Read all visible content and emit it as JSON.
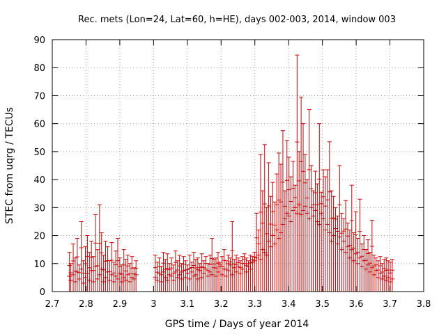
{
  "chart_data": {
    "type": "scatter",
    "title": "Rec. mets (Lon=24, Lat=60, h=HE), days 002-003, 2014, window 003",
    "xlabel": "GPS time / Days of year 2014",
    "ylabel": "STEC from uqrg / TECUs",
    "xlim": [
      2.7,
      3.8
    ],
    "ylim": [
      0,
      90
    ],
    "xticks": [
      "2.7",
      "2.8",
      "2.9",
      "3",
      "3.1",
      "3.2",
      "3.3",
      "3.4",
      "3.5",
      "3.6",
      "3.7",
      "3.8"
    ],
    "yticks": [
      "0",
      "10",
      "20",
      "30",
      "40",
      "50",
      "60",
      "70",
      "80",
      "90"
    ],
    "grid": true,
    "series": [
      {
        "color": "#cc0000",
        "error_bars": true,
        "points": [
          {
            "x": 2.751,
            "y": 5.5,
            "top": 14.0
          },
          {
            "x": 2.755,
            "y": 4.0,
            "top": 10.0
          },
          {
            "x": 2.762,
            "y": 6.0,
            "top": 17.0
          },
          {
            "x": 2.768,
            "y": 3.5,
            "top": 12.0
          },
          {
            "x": 2.774,
            "y": 7.0,
            "top": 19.0
          },
          {
            "x": 2.78,
            "y": 4.5,
            "top": 9.5
          },
          {
            "x": 2.786,
            "y": 8.0,
            "top": 25.0
          },
          {
            "x": 2.792,
            "y": 3.0,
            "top": 11.0
          },
          {
            "x": 2.798,
            "y": 5.0,
            "top": 16.0
          },
          {
            "x": 2.804,
            "y": 6.5,
            "top": 20.0
          },
          {
            "x": 2.81,
            "y": 4.0,
            "top": 14.0
          },
          {
            "x": 2.816,
            "y": 7.5,
            "top": 18.0
          },
          {
            "x": 2.822,
            "y": 3.5,
            "top": 12.5
          },
          {
            "x": 2.828,
            "y": 9.0,
            "top": 27.5
          },
          {
            "x": 2.834,
            "y": 4.5,
            "top": 15.0
          },
          {
            "x": 2.84,
            "y": 6.0,
            "top": 31.0
          },
          {
            "x": 2.846,
            "y": 8.0,
            "top": 21.0
          },
          {
            "x": 2.852,
            "y": 3.5,
            "top": 13.0
          },
          {
            "x": 2.858,
            "y": 5.0,
            "top": 18.0
          },
          {
            "x": 2.864,
            "y": 7.0,
            "top": 16.0
          },
          {
            "x": 2.87,
            "y": 4.0,
            "top": 11.0
          },
          {
            "x": 2.876,
            "y": 6.0,
            "top": 17.5
          },
          {
            "x": 2.882,
            "y": 3.5,
            "top": 10.5
          },
          {
            "x": 2.888,
            "y": 5.5,
            "top": 14.5
          },
          {
            "x": 2.894,
            "y": 4.5,
            "top": 19.0
          },
          {
            "x": 2.9,
            "y": 6.5,
            "top": 12.0
          },
          {
            "x": 2.906,
            "y": 3.5,
            "top": 9.5
          },
          {
            "x": 2.912,
            "y": 5.0,
            "top": 15.0
          },
          {
            "x": 2.918,
            "y": 4.0,
            "top": 11.5
          },
          {
            "x": 2.924,
            "y": 6.0,
            "top": 13.0
          },
          {
            "x": 2.93,
            "y": 3.5,
            "top": 10.0
          },
          {
            "x": 2.936,
            "y": 5.0,
            "top": 12.5
          },
          {
            "x": 2.942,
            "y": 4.5,
            "top": 8.5
          },
          {
            "x": 2.948,
            "y": 6.0,
            "top": 11.0
          },
          {
            "x": 3.005,
            "y": 5.0,
            "top": 13.0
          },
          {
            "x": 3.011,
            "y": 4.0,
            "top": 10.5
          },
          {
            "x": 3.017,
            "y": 6.5,
            "top": 12.0
          },
          {
            "x": 3.023,
            "y": 3.5,
            "top": 9.0
          },
          {
            "x": 3.029,
            "y": 7.0,
            "top": 14.0
          },
          {
            "x": 3.035,
            "y": 5.0,
            "top": 11.5
          },
          {
            "x": 3.041,
            "y": 4.0,
            "top": 13.5
          },
          {
            "x": 3.047,
            "y": 6.0,
            "top": 10.0
          },
          {
            "x": 3.053,
            "y": 5.5,
            "top": 12.0
          },
          {
            "x": 3.059,
            "y": 4.0,
            "top": 9.5
          },
          {
            "x": 3.065,
            "y": 7.0,
            "top": 14.5
          },
          {
            "x": 3.071,
            "y": 5.0,
            "top": 11.0
          },
          {
            "x": 3.077,
            "y": 6.0,
            "top": 13.0
          },
          {
            "x": 3.083,
            "y": 4.5,
            "top": 10.0
          },
          {
            "x": 3.089,
            "y": 7.5,
            "top": 12.5
          },
          {
            "x": 3.095,
            "y": 5.0,
            "top": 11.0
          },
          {
            "x": 3.101,
            "y": 6.5,
            "top": 9.5
          },
          {
            "x": 3.107,
            "y": 4.5,
            "top": 13.0
          },
          {
            "x": 3.113,
            "y": 7.0,
            "top": 10.5
          },
          {
            "x": 3.119,
            "y": 5.5,
            "top": 14.0
          },
          {
            "x": 3.125,
            "y": 6.0,
            "top": 11.5
          },
          {
            "x": 3.131,
            "y": 4.5,
            "top": 12.0
          },
          {
            "x": 3.137,
            "y": 7.5,
            "top": 10.0
          },
          {
            "x": 3.143,
            "y": 5.0,
            "top": 13.5
          },
          {
            "x": 3.149,
            "y": 6.5,
            "top": 11.0
          },
          {
            "x": 3.155,
            "y": 8.0,
            "top": 12.5
          },
          {
            "x": 3.161,
            "y": 5.5,
            "top": 10.0
          },
          {
            "x": 3.167,
            "y": 7.0,
            "top": 13.0
          },
          {
            "x": 3.173,
            "y": 6.0,
            "top": 19.0
          },
          {
            "x": 3.179,
            "y": 8.5,
            "top": 11.5
          },
          {
            "x": 3.185,
            "y": 5.5,
            "top": 12.0
          },
          {
            "x": 3.191,
            "y": 7.0,
            "top": 14.0
          },
          {
            "x": 3.197,
            "y": 9.0,
            "top": 10.5
          },
          {
            "x": 3.203,
            "y": 6.0,
            "top": 12.5
          },
          {
            "x": 3.209,
            "y": 8.0,
            "top": 15.0
          },
          {
            "x": 3.215,
            "y": 5.5,
            "top": 11.0
          },
          {
            "x": 3.221,
            "y": 7.5,
            "top": 13.0
          },
          {
            "x": 3.227,
            "y": 9.5,
            "top": 12.0
          },
          {
            "x": 3.233,
            "y": 6.0,
            "top": 25.0
          },
          {
            "x": 3.239,
            "y": 8.5,
            "top": 11.5
          },
          {
            "x": 3.245,
            "y": 7.0,
            "top": 13.0
          },
          {
            "x": 3.251,
            "y": 9.0,
            "top": 12.0
          },
          {
            "x": 3.257,
            "y": 6.5,
            "top": 11.0
          },
          {
            "x": 3.263,
            "y": 8.0,
            "top": 12.5
          },
          {
            "x": 3.269,
            "y": 10.0,
            "top": 13.5
          },
          {
            "x": 3.275,
            "y": 7.0,
            "top": 12.0
          },
          {
            "x": 3.281,
            "y": 9.0,
            "top": 11.0
          },
          {
            "x": 3.287,
            "y": 8.0,
            "top": 13.0
          },
          {
            "x": 3.293,
            "y": 10.5,
            "top": 12.5
          },
          {
            "x": 3.299,
            "y": 11.0,
            "top": 14.0
          },
          {
            "x": 3.305,
            "y": 12.0,
            "top": 28.0
          },
          {
            "x": 3.311,
            "y": 13.0,
            "top": 22.0
          },
          {
            "x": 3.317,
            "y": 11.5,
            "top": 49.0
          },
          {
            "x": 3.323,
            "y": 15.0,
            "top": 36.0
          },
          {
            "x": 3.329,
            "y": 14.0,
            "top": 52.5
          },
          {
            "x": 3.335,
            "y": 13.0,
            "top": 30.0
          },
          {
            "x": 3.341,
            "y": 18.0,
            "top": 46.0
          },
          {
            "x": 3.347,
            "y": 16.0,
            "top": 34.0
          },
          {
            "x": 3.353,
            "y": 20.0,
            "top": 39.0
          },
          {
            "x": 3.359,
            "y": 17.0,
            "top": 32.0
          },
          {
            "x": 3.365,
            "y": 22.0,
            "top": 42.0
          },
          {
            "x": 3.371,
            "y": 19.0,
            "top": 49.5
          },
          {
            "x": 3.377,
            "y": 21.0,
            "top": 45.5
          },
          {
            "x": 3.383,
            "y": 24.0,
            "top": 57.5
          },
          {
            "x": 3.389,
            "y": 26.0,
            "top": 36.0
          },
          {
            "x": 3.395,
            "y": 28.0,
            "top": 54.0
          },
          {
            "x": 3.401,
            "y": 27.0,
            "top": 48.0
          },
          {
            "x": 3.407,
            "y": 25.0,
            "top": 41.0
          },
          {
            "x": 3.413,
            "y": 29.0,
            "top": 46.5
          },
          {
            "x": 3.419,
            "y": 30.0,
            "top": 38.0
          },
          {
            "x": 3.425,
            "y": 28.0,
            "top": 84.5
          },
          {
            "x": 3.431,
            "y": 31.0,
            "top": 50.0
          },
          {
            "x": 3.437,
            "y": 27.5,
            "top": 69.5
          },
          {
            "x": 3.443,
            "y": 29.0,
            "top": 60.0
          },
          {
            "x": 3.449,
            "y": 30.5,
            "top": 49.0
          },
          {
            "x": 3.455,
            "y": 28.0,
            "top": 40.0
          },
          {
            "x": 3.461,
            "y": 26.0,
            "top": 65.0
          },
          {
            "x": 3.467,
            "y": 30.0,
            "top": 45.0
          },
          {
            "x": 3.473,
            "y": 27.0,
            "top": 36.0
          },
          {
            "x": 3.479,
            "y": 29.0,
            "top": 43.0
          },
          {
            "x": 3.485,
            "y": 25.0,
            "top": 38.5
          },
          {
            "x": 3.491,
            "y": 24.0,
            "top": 60.0
          },
          {
            "x": 3.497,
            "y": 28.0,
            "top": 35.5
          },
          {
            "x": 3.503,
            "y": 26.0,
            "top": 43.5
          },
          {
            "x": 3.509,
            "y": 22.0,
            "top": 41.0
          },
          {
            "x": 3.515,
            "y": 24.0,
            "top": 43.5
          },
          {
            "x": 3.521,
            "y": 21.0,
            "top": 53.5
          },
          {
            "x": 3.527,
            "y": 18.0,
            "top": 36.0
          },
          {
            "x": 3.533,
            "y": 20.0,
            "top": 34.0
          },
          {
            "x": 3.539,
            "y": 22.5,
            "top": 30.0
          },
          {
            "x": 3.545,
            "y": 17.0,
            "top": 27.0
          },
          {
            "x": 3.551,
            "y": 19.5,
            "top": 45.0
          },
          {
            "x": 3.557,
            "y": 15.0,
            "top": 28.0
          },
          {
            "x": 3.563,
            "y": 18.0,
            "top": 26.0
          },
          {
            "x": 3.569,
            "y": 14.0,
            "top": 32.5
          },
          {
            "x": 3.575,
            "y": 16.0,
            "top": 24.5
          },
          {
            "x": 3.581,
            "y": 12.0,
            "top": 22.0
          },
          {
            "x": 3.587,
            "y": 15.0,
            "top": 38.0
          },
          {
            "x": 3.593,
            "y": 11.0,
            "top": 21.0
          },
          {
            "x": 3.599,
            "y": 13.5,
            "top": 28.5
          },
          {
            "x": 3.605,
            "y": 10.0,
            "top": 19.0
          },
          {
            "x": 3.611,
            "y": 12.0,
            "top": 33.0
          },
          {
            "x": 3.617,
            "y": 9.0,
            "top": 17.0
          },
          {
            "x": 3.623,
            "y": 11.0,
            "top": 20.0
          },
          {
            "x": 3.629,
            "y": 8.0,
            "top": 15.0
          },
          {
            "x": 3.635,
            "y": 9.5,
            "top": 18.5
          },
          {
            "x": 3.641,
            "y": 7.0,
            "top": 14.0
          },
          {
            "x": 3.647,
            "y": 8.5,
            "top": 25.5
          },
          {
            "x": 3.653,
            "y": 6.0,
            "top": 13.0
          },
          {
            "x": 3.659,
            "y": 7.5,
            "top": 12.0
          },
          {
            "x": 3.665,
            "y": 5.0,
            "top": 11.0
          },
          {
            "x": 3.671,
            "y": 6.5,
            "top": 12.5
          },
          {
            "x": 3.677,
            "y": 4.5,
            "top": 10.0
          },
          {
            "x": 3.683,
            "y": 5.5,
            "top": 11.5
          },
          {
            "x": 3.689,
            "y": 4.0,
            "top": 12.0
          },
          {
            "x": 3.695,
            "y": 5.0,
            "top": 11.0
          },
          {
            "x": 3.701,
            "y": 3.5,
            "top": 10.5
          },
          {
            "x": 3.707,
            "y": 4.5,
            "top": 11.5
          }
        ]
      }
    ]
  }
}
